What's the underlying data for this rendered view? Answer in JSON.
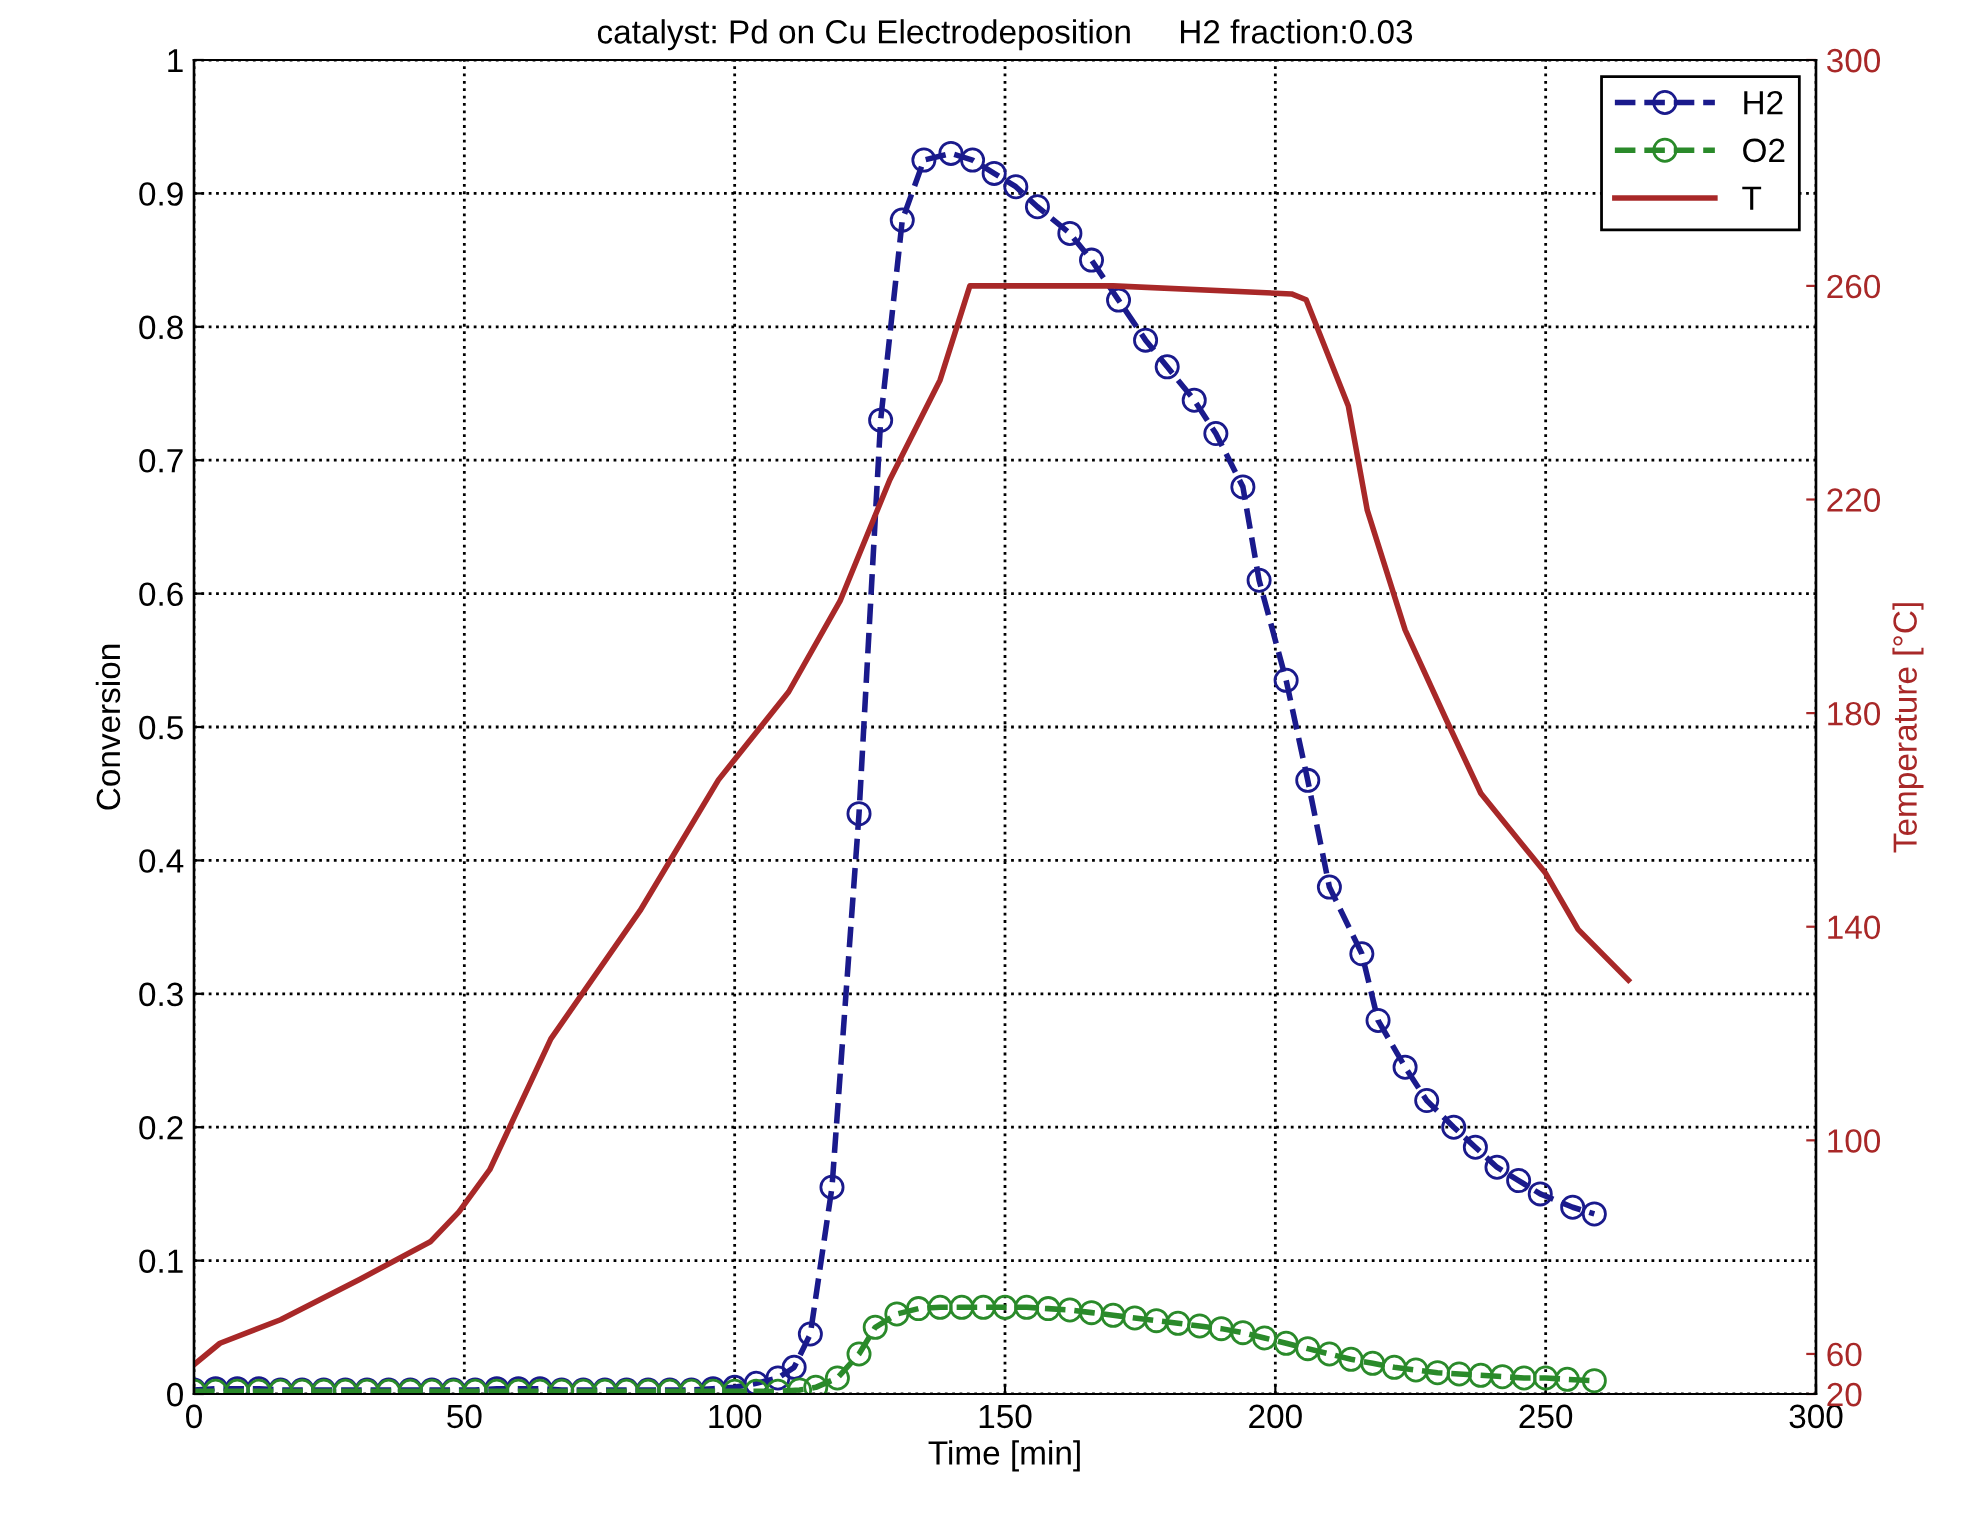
{
  "chart_data": {
    "type": "line",
    "title": "catalyst: Pd on Cu Electrodeposition     H2 fraction:0.03",
    "xlabel": "Time [min]",
    "ylabel": "Conversion",
    "y2label": "Temperature [°C]",
    "xlim": [
      0,
      300
    ],
    "xticks": [
      0,
      50,
      100,
      150,
      200,
      250,
      300
    ],
    "ylim": [
      0,
      1
    ],
    "yticks": [
      0,
      0.1,
      0.2,
      0.3,
      0.4,
      0.5,
      0.6,
      0.7,
      0.8,
      0.9,
      1
    ],
    "y2lim": [
      52.5,
      302.3
    ],
    "y2ticks": [
      60,
      100,
      140,
      180,
      220,
      260
    ],
    "y3lim": [
      20,
      300
    ],
    "y3ticks": [
      20,
      300
    ],
    "grid": true,
    "legend": "top right",
    "series": [
      {
        "name": "H2",
        "color": "#1a1a8c",
        "marker": "circle",
        "line_style": "dashed",
        "x": [
          0,
          4,
          8,
          12,
          16,
          20,
          24,
          28,
          32,
          36,
          40,
          44,
          48,
          52,
          56,
          60,
          64,
          68,
          72,
          76,
          80,
          84,
          88,
          92,
          96,
          100,
          104,
          108,
          111,
          114,
          118,
          123,
          127,
          131,
          135,
          140,
          144,
          148,
          152,
          156,
          162,
          166,
          171,
          176,
          180,
          185,
          189,
          194,
          197,
          202,
          206,
          210,
          216,
          219,
          224,
          228,
          233,
          237,
          241,
          245,
          249,
          255,
          259
        ],
        "values": [
          0.003,
          0.004,
          0.004,
          0.004,
          0.003,
          0.003,
          0.003,
          0.003,
          0.003,
          0.003,
          0.003,
          0.003,
          0.003,
          0.003,
          0.004,
          0.004,
          0.004,
          0.003,
          0.003,
          0.003,
          0.003,
          0.003,
          0.003,
          0.003,
          0.004,
          0.005,
          0.008,
          0.012,
          0.02,
          0.045,
          0.155,
          0.435,
          0.73,
          0.88,
          0.925,
          0.93,
          0.925,
          0.915,
          0.905,
          0.89,
          0.87,
          0.85,
          0.82,
          0.79,
          0.77,
          0.745,
          0.72,
          0.68,
          0.61,
          0.535,
          0.46,
          0.38,
          0.33,
          0.28,
          0.245,
          0.22,
          0.2,
          0.185,
          0.17,
          0.16,
          0.15,
          0.14,
          0.135
        ]
      },
      {
        "name": "O2",
        "color": "#2a8a2a",
        "marker": "circle",
        "line_style": "dashed",
        "x": [
          0,
          4,
          8,
          12,
          16,
          20,
          24,
          28,
          32,
          36,
          40,
          44,
          48,
          52,
          56,
          60,
          64,
          68,
          72,
          76,
          80,
          84,
          88,
          92,
          96,
          100,
          104,
          108,
          112,
          115,
          119,
          123,
          126,
          130,
          134,
          138,
          142,
          146,
          150,
          154,
          158,
          162,
          166,
          170,
          174,
          178,
          182,
          186,
          190,
          194,
          198,
          202,
          206,
          210,
          214,
          218,
          222,
          226,
          230,
          234,
          238,
          242,
          246,
          250,
          254,
          259
        ],
        "values": [
          0.002,
          0.002,
          0.002,
          0.002,
          0.002,
          0.002,
          0.002,
          0.002,
          0.002,
          0.002,
          0.002,
          0.002,
          0.002,
          0.002,
          0.002,
          0.002,
          0.002,
          0.002,
          0.002,
          0.002,
          0.002,
          0.002,
          0.002,
          0.002,
          0.002,
          0.002,
          0.002,
          0.002,
          0.003,
          0.005,
          0.012,
          0.03,
          0.05,
          0.06,
          0.064,
          0.065,
          0.065,
          0.065,
          0.065,
          0.065,
          0.064,
          0.063,
          0.061,
          0.059,
          0.057,
          0.055,
          0.053,
          0.051,
          0.049,
          0.046,
          0.042,
          0.038,
          0.034,
          0.03,
          0.026,
          0.023,
          0.02,
          0.018,
          0.016,
          0.015,
          0.014,
          0.013,
          0.012,
          0.012,
          0.011,
          0.01
        ]
      },
      {
        "name": "T",
        "color": "#a82828",
        "axis": "y2",
        "marker": "none",
        "line_style": "solid",
        "x": [
          0,
          4.8,
          16,
          30.7,
          43.7,
          49,
          54.7,
          66,
          82.5,
          97,
          110,
          119.5,
          128.7,
          138,
          143.5,
          170,
          203,
          205.7,
          213.5,
          217,
          224,
          231.6,
          238,
          250,
          256,
          265.3
        ],
        "values": [
          58,
          62,
          66.4,
          74,
          81,
          86.6,
          94.5,
          119,
          143,
          167.5,
          184,
          201,
          223.7,
          242.4,
          260,
          260,
          258.5,
          257.4,
          237.5,
          218,
          195.6,
          178.8,
          165,
          150,
          139.5,
          130
        ]
      }
    ]
  }
}
